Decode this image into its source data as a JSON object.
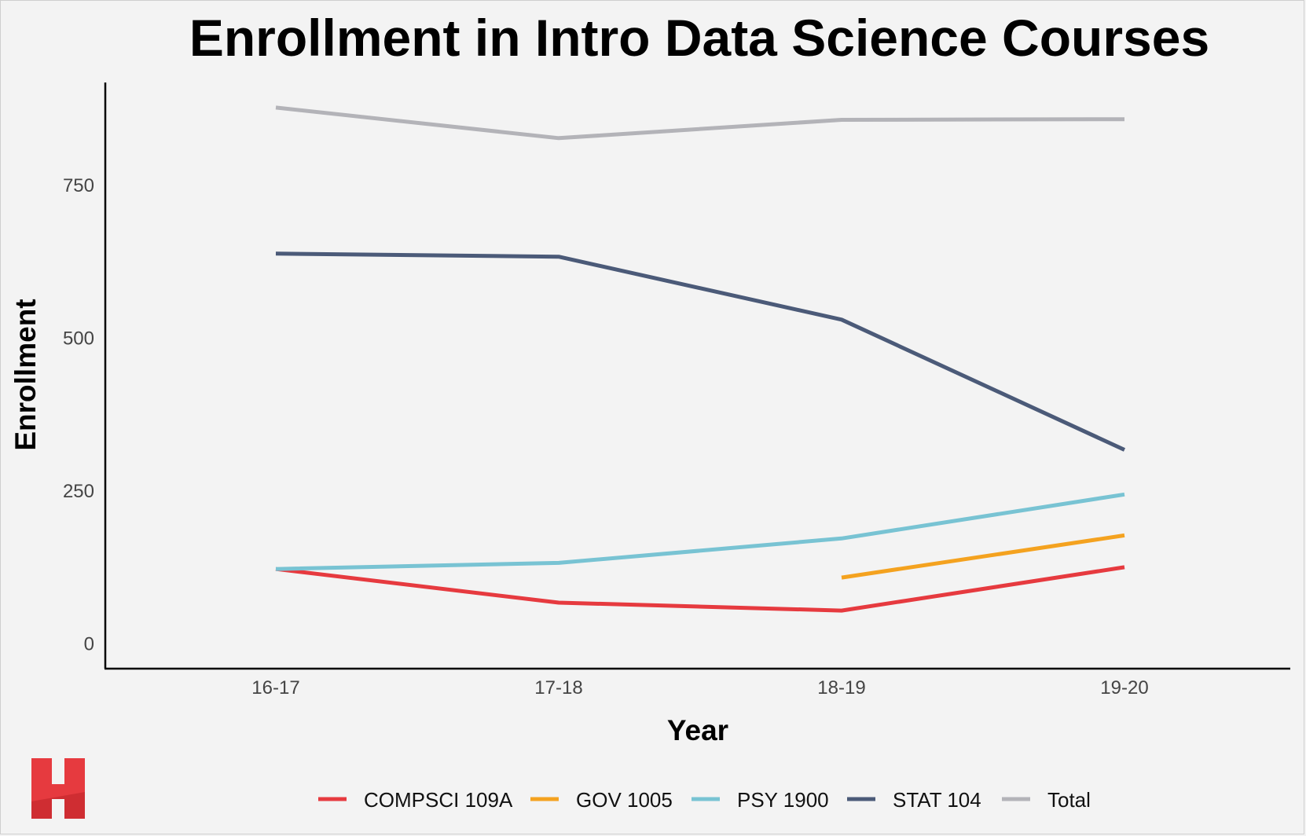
{
  "chart_data": {
    "type": "line",
    "title": "Enrollment in Intro Data Science Courses",
    "xlabel": "Year",
    "ylabel": "Enrollment",
    "categories": [
      "16-17",
      "17-18",
      "18-19",
      "19-20"
    ],
    "yticks": [
      0,
      250,
      500,
      750
    ],
    "ylim": [
      -42,
      917
    ],
    "grid": false,
    "legend_position": "bottom",
    "series": [
      {
        "name": "COMPSCI 109A",
        "color": "#e63a3f",
        "values": [
          121,
          66,
          53,
          124
        ]
      },
      {
        "name": "GOV 1005",
        "color": "#f4a21f",
        "values": [
          null,
          null,
          107,
          176
        ]
      },
      {
        "name": "PSY 1900",
        "color": "#78c3d3",
        "values": [
          121,
          131,
          171,
          243
        ]
      },
      {
        "name": "STAT 104",
        "color": "#4b5a78",
        "values": [
          637,
          632,
          529,
          316
        ]
      },
      {
        "name": "Total",
        "color": "#b3b3b8",
        "values": [
          876,
          826,
          856,
          857
        ]
      }
    ]
  },
  "logo": {
    "icon": "harvard-h-logo-icon",
    "color": "#e63a3f"
  }
}
